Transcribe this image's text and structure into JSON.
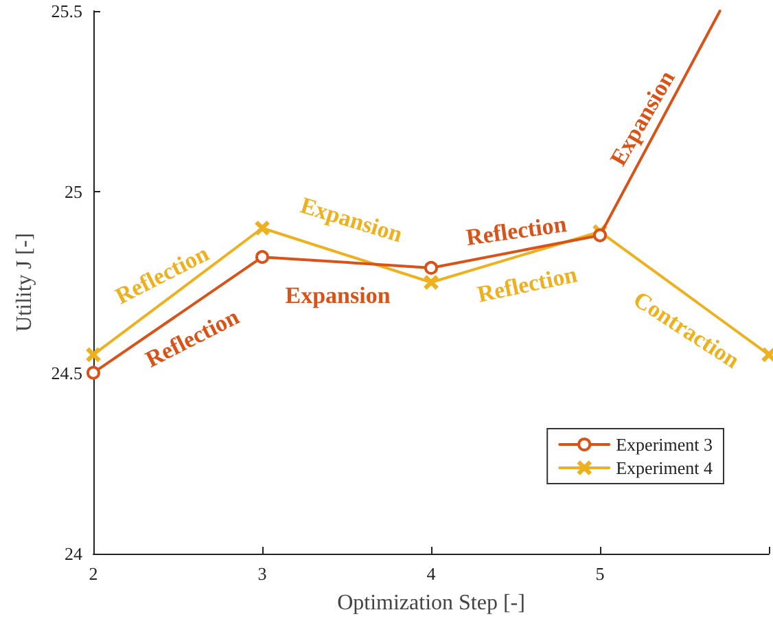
{
  "chart_data": {
    "type": "line",
    "xlabel": "Optimization Step [-]",
    "ylabel": "Utility J [-]",
    "xlim": [
      2,
      6
    ],
    "xticks": [
      2,
      3,
      4,
      5,
      {
        "value": 6,
        "label": null
      }
    ],
    "ylim": [
      24,
      25.5
    ],
    "yticks": [
      24,
      24.5,
      25,
      25.5
    ],
    "grid": false,
    "legend": "bottom right",
    "line_style": "solid",
    "series": [
      {
        "name": "Experiment 3",
        "color": "#d95319",
        "marker": "circle",
        "x": [
          2,
          3,
          4,
          5,
          5.71
        ],
        "values": [
          24.5,
          24.82,
          24.79,
          24.88,
          25.5
        ]
      },
      {
        "name": "Experiment 4",
        "color": "#edb120",
        "marker": "cross",
        "x": [
          2,
          3,
          4,
          5,
          6
        ],
        "values": [
          24.55,
          24.9,
          24.75,
          24.89,
          24.55
        ]
      }
    ],
    "annotations": [
      "Reflection",
      "Reflection",
      "Expansion",
      "Expansion",
      "Reflection",
      "Reflection",
      "Expansion",
      "Contraction"
    ]
  }
}
